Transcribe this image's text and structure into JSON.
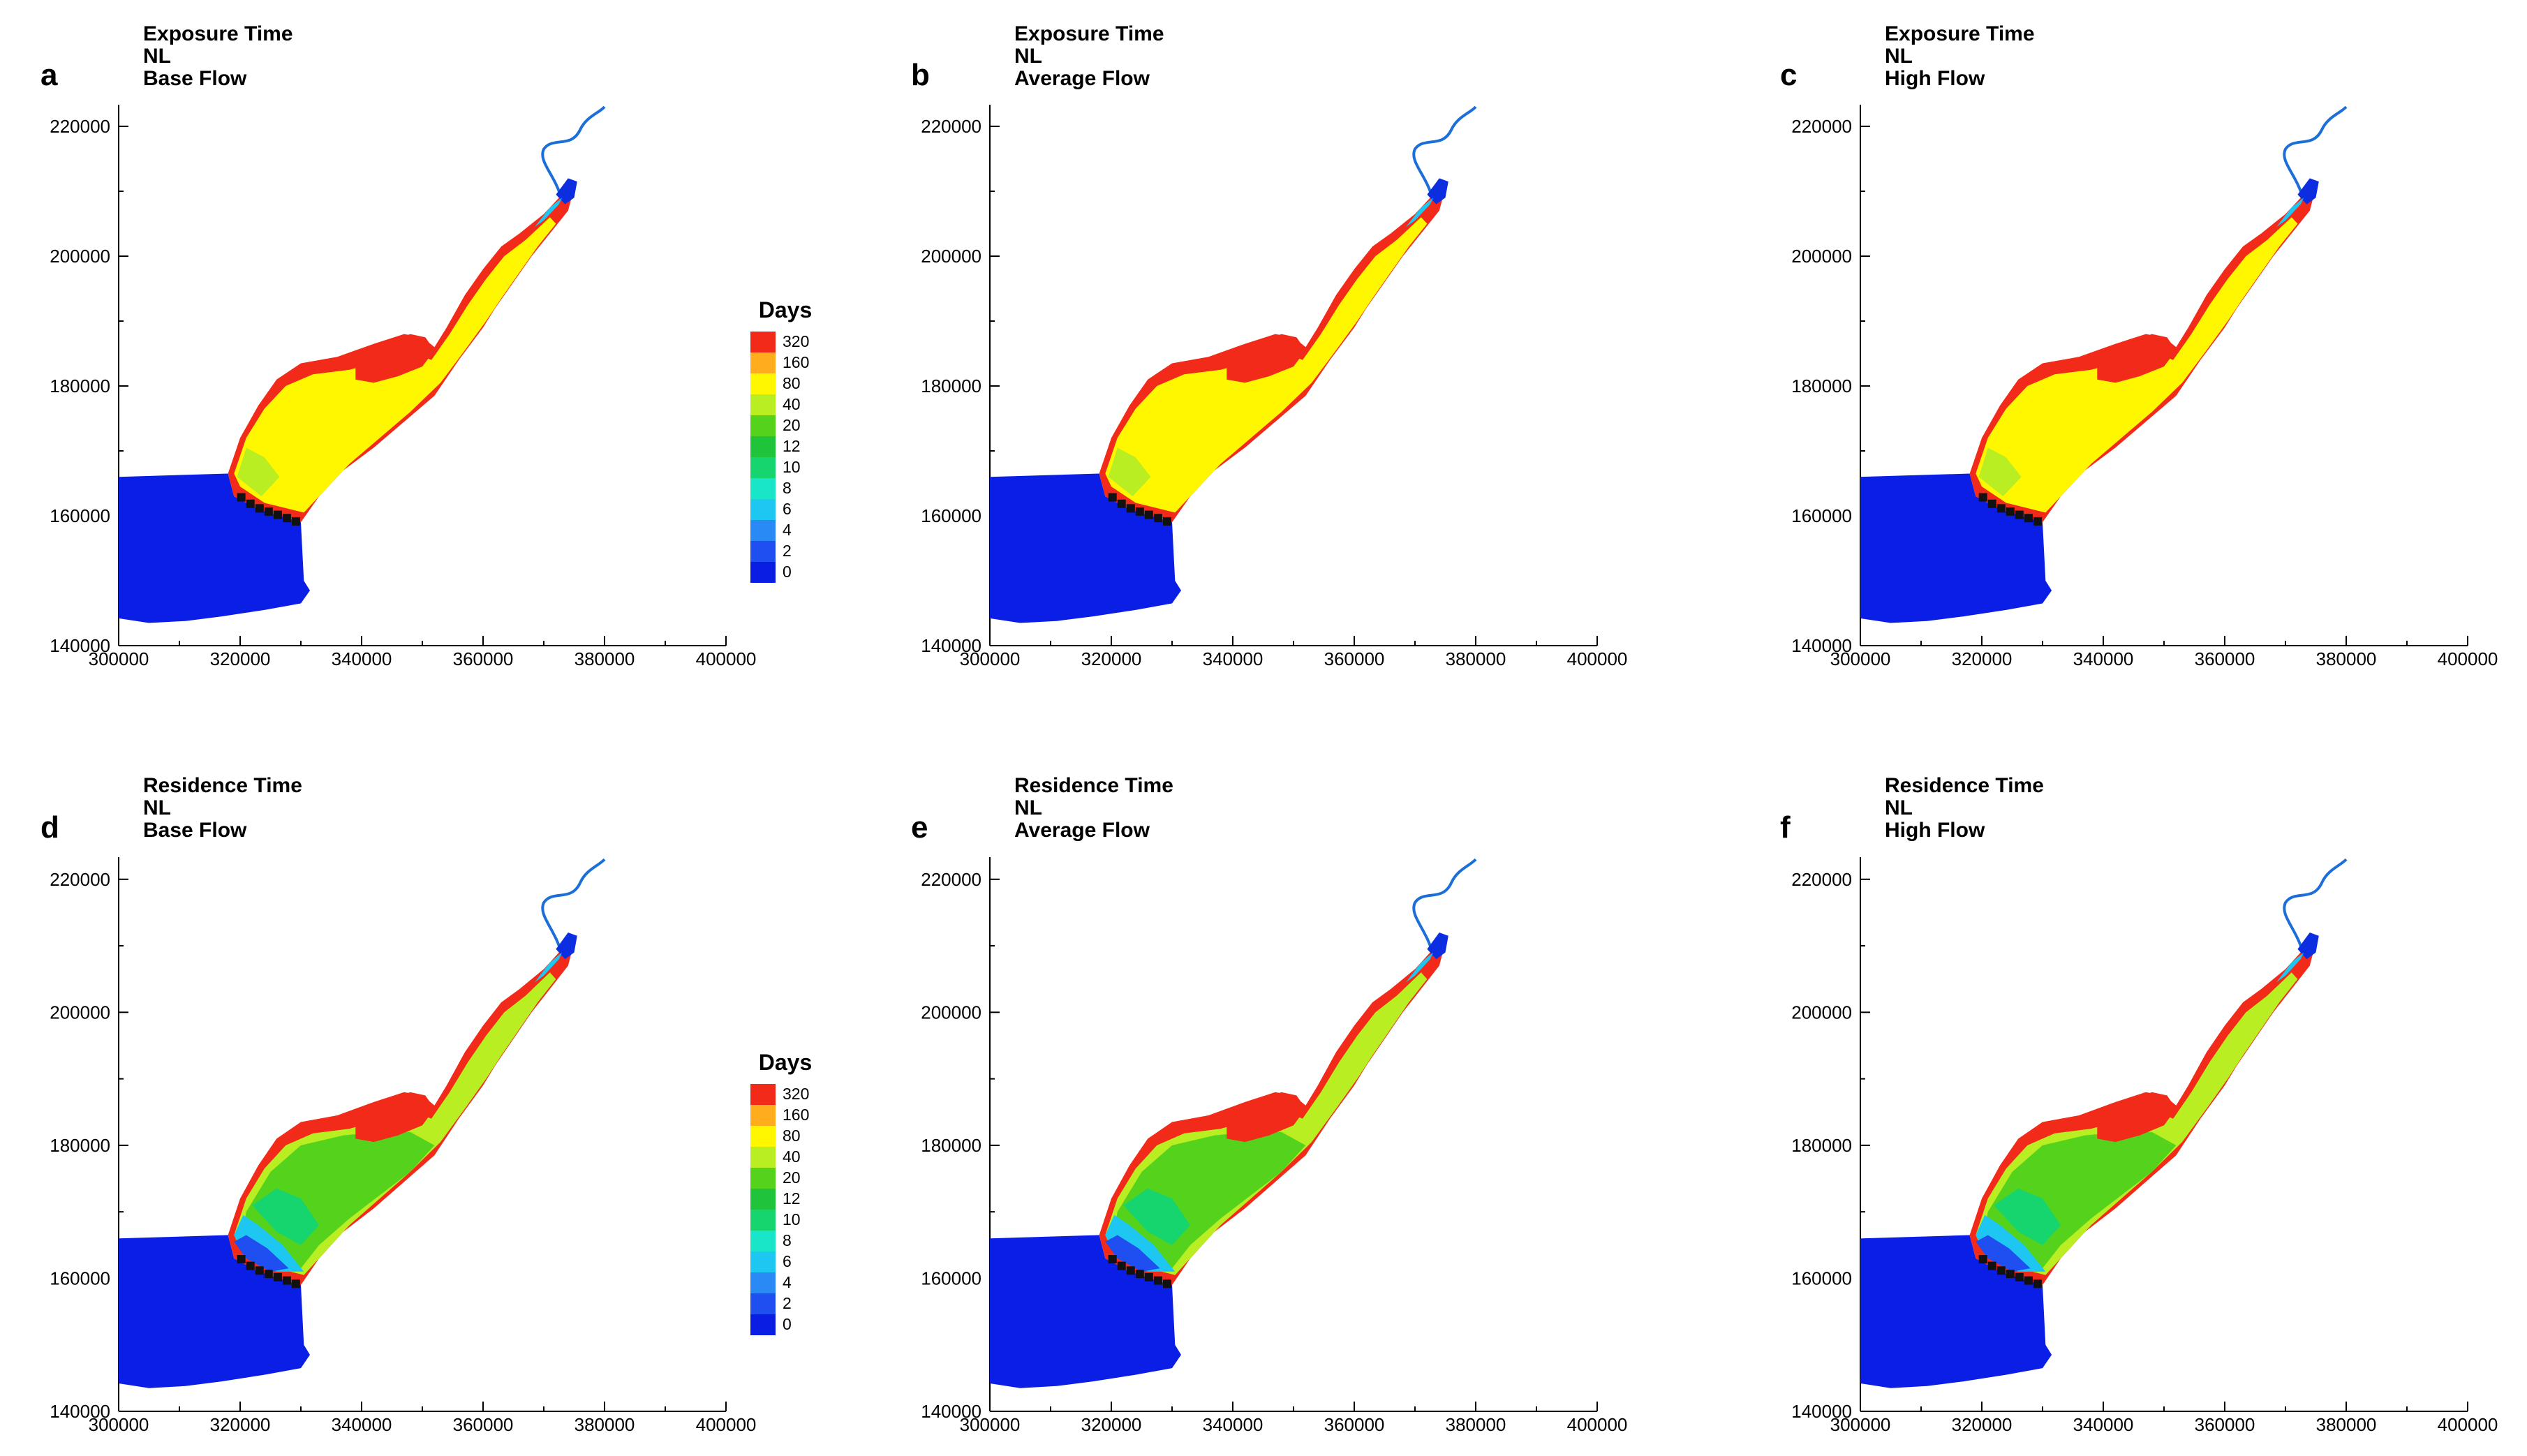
{
  "figure": {
    "colors": {
      "sea": "#0b1ee6",
      "river": "#1c6fd8",
      "inlet": "#0d2ee0",
      "shore": "#111111",
      "c0": "#0a1ee3",
      "c2": "#1f4ff0",
      "c4": "#2a8af5",
      "c6": "#1ec7f2",
      "c8": "#19e6c8",
      "c10": "#16d46e",
      "c12": "#20c43a",
      "c20": "#55d21c",
      "c40": "#b8ee22",
      "c80": "#fff700",
      "c160": "#ffad1c",
      "c320": "#f22a1a"
    },
    "panels": [
      {
        "letter": "a",
        "title_lines": [
          "Exposure Time",
          "NL",
          "Base Flow"
        ],
        "metric": "exposure",
        "legend": true
      },
      {
        "letter": "b",
        "title_lines": [
          "Exposure Time",
          "NL",
          "Average Flow"
        ],
        "metric": "exposure",
        "legend": false
      },
      {
        "letter": "c",
        "title_lines": [
          "Exposure Time",
          "NL",
          "High Flow"
        ],
        "metric": "exposure",
        "legend": false
      },
      {
        "letter": "d",
        "title_lines": [
          "Residence Time",
          "NL",
          "Base Flow"
        ],
        "metric": "residence",
        "legend": true
      },
      {
        "letter": "e",
        "title_lines": [
          "Residence Time",
          "NL",
          "Average Flow"
        ],
        "metric": "residence",
        "legend": false
      },
      {
        "letter": "f",
        "title_lines": [
          "Residence Time",
          "NL",
          "High Flow"
        ],
        "metric": "residence",
        "legend": false
      }
    ],
    "axes": {
      "x_ticks": [
        "300000",
        "320000",
        "340000",
        "360000",
        "380000",
        "400000"
      ],
      "y_ticks": [
        "140000",
        "160000",
        "180000",
        "200000",
        "220000"
      ]
    },
    "legend": {
      "title": "Days",
      "labels": [
        "320",
        "160",
        "80",
        "40",
        "20",
        "12",
        "10",
        "8",
        "6",
        "4",
        "2",
        "0"
      ]
    }
  }
}
